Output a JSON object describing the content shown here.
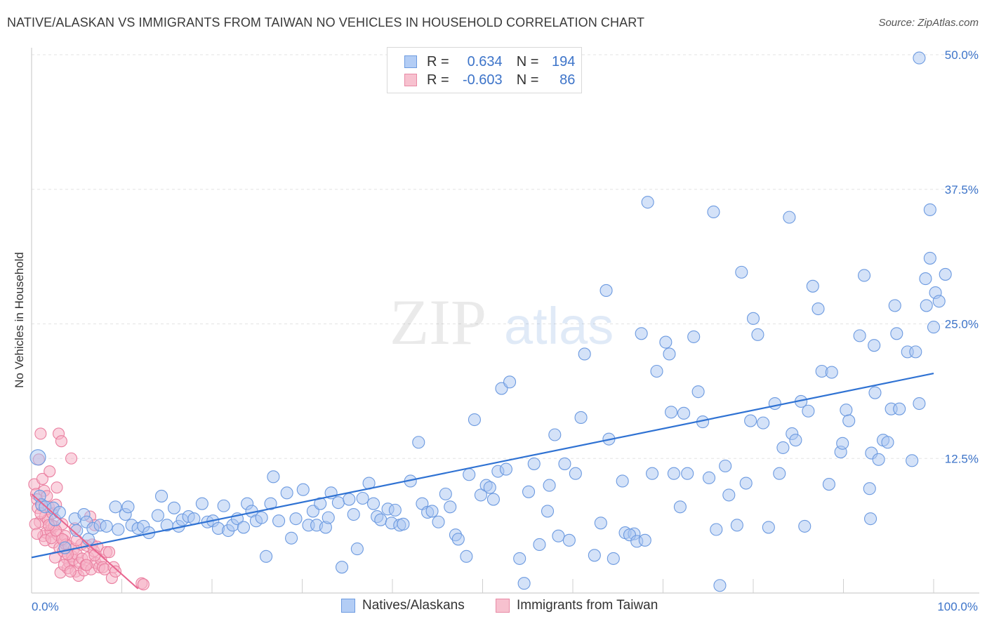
{
  "header": {
    "title": "NATIVE/ALASKAN VS IMMIGRANTS FROM TAIWAN NO VEHICLES IN HOUSEHOLD CORRELATION CHART",
    "source": "Source: ZipAtlas.com"
  },
  "stats_box": {
    "rows": [
      {
        "r_label": "R =",
        "r_value": "0.634",
        "n_label": "N =",
        "n_value": "194"
      },
      {
        "r_label": "R =",
        "r_value": "-0.603",
        "n_label": "N =",
        "n_value": "86"
      }
    ]
  },
  "watermark": {
    "zip": "ZIP",
    "atlas": "atlas"
  },
  "colors": {
    "blue_fill": "#a9c6f2",
    "blue_stroke": "#6c9ae0",
    "blue_line": "#2f72d3",
    "pink_fill": "#f6b3c6",
    "pink_stroke": "#ea7fa0",
    "pink_line": "#e8648e",
    "tick_text": "#3d74c9",
    "grid": "#e3e3e3"
  },
  "legend": {
    "items": [
      "Natives/Alaskans",
      "Immigrants from Taiwan"
    ]
  },
  "chart_data": {
    "type": "scatter",
    "title": "NATIVE/ALASKAN VS IMMIGRANTS FROM TAIWAN NO VEHICLES IN HOUSEHOLD CORRELATION CHART",
    "xlabel": "",
    "ylabel": "No Vehicles in Household",
    "xlim": [
      0,
      100
    ],
    "ylim": [
      0,
      50
    ],
    "x_tick_labels": [
      "0.0%",
      "100.0%"
    ],
    "y_ticks": [
      12.5,
      25.0,
      37.5,
      50.0
    ],
    "y_tick_labels": [
      "12.5%",
      "25.0%",
      "37.5%",
      "50.0%"
    ],
    "grid": true,
    "legend_position": "bottom",
    "series": [
      {
        "name": "Natives/Alaskans",
        "r": 0.634,
        "n": 194,
        "trend": {
          "x": [
            0,
            100
          ],
          "y": [
            3.3,
            20.4
          ]
        },
        "points": [
          [
            0.7,
            12.6
          ],
          [
            0.9,
            9.0
          ],
          [
            1.1,
            8.2
          ],
          [
            1.5,
            8.0
          ],
          [
            2.4,
            7.9
          ],
          [
            2.6,
            6.8
          ],
          [
            3.1,
            7.5
          ],
          [
            3.7,
            4.2
          ],
          [
            4.8,
            6.9
          ],
          [
            5.0,
            5.8
          ],
          [
            5.8,
            7.3
          ],
          [
            6.1,
            6.6
          ],
          [
            6.3,
            5.0
          ],
          [
            6.8,
            6.0
          ],
          [
            7.6,
            6.3
          ],
          [
            8.3,
            6.2
          ],
          [
            9.3,
            8.0
          ],
          [
            9.6,
            5.9
          ],
          [
            10.4,
            7.3
          ],
          [
            10.7,
            8.0
          ],
          [
            11.1,
            6.3
          ],
          [
            11.8,
            6.0
          ],
          [
            12.4,
            6.2
          ],
          [
            13.0,
            5.6
          ],
          [
            14.0,
            7.2
          ],
          [
            14.4,
            9.0
          ],
          [
            15.0,
            6.3
          ],
          [
            15.8,
            7.9
          ],
          [
            16.3,
            6.2
          ],
          [
            16.7,
            6.8
          ],
          [
            17.4,
            7.1
          ],
          [
            18.0,
            6.9
          ],
          [
            18.9,
            8.3
          ],
          [
            19.5,
            6.6
          ],
          [
            20.1,
            6.7
          ],
          [
            20.7,
            6.0
          ],
          [
            21.3,
            8.1
          ],
          [
            21.8,
            5.8
          ],
          [
            22.3,
            6.3
          ],
          [
            22.8,
            6.9
          ],
          [
            23.5,
            6.1
          ],
          [
            23.9,
            8.3
          ],
          [
            24.4,
            7.6
          ],
          [
            24.9,
            6.7
          ],
          [
            25.5,
            7.0
          ],
          [
            26.0,
            3.4
          ],
          [
            26.5,
            8.3
          ],
          [
            26.8,
            10.8
          ],
          [
            27.4,
            6.7
          ],
          [
            28.3,
            9.3
          ],
          [
            28.8,
            5.1
          ],
          [
            29.3,
            6.9
          ],
          [
            30.1,
            9.6
          ],
          [
            30.7,
            6.3
          ],
          [
            31.2,
            7.6
          ],
          [
            31.6,
            6.3
          ],
          [
            32.0,
            8.3
          ],
          [
            32.6,
            6.1
          ],
          [
            32.9,
            7.0
          ],
          [
            33.2,
            9.3
          ],
          [
            34.0,
            8.4
          ],
          [
            34.4,
            2.4
          ],
          [
            35.2,
            8.7
          ],
          [
            35.7,
            7.3
          ],
          [
            36.1,
            4.1
          ],
          [
            36.7,
            8.8
          ],
          [
            37.4,
            10.2
          ],
          [
            37.9,
            8.3
          ],
          [
            38.3,
            7.1
          ],
          [
            38.7,
            6.8
          ],
          [
            39.5,
            7.8
          ],
          [
            39.9,
            6.5
          ],
          [
            40.3,
            7.7
          ],
          [
            40.8,
            6.3
          ],
          [
            41.2,
            6.4
          ],
          [
            42.0,
            10.4
          ],
          [
            42.9,
            14.0
          ],
          [
            43.3,
            8.3
          ],
          [
            43.9,
            7.5
          ],
          [
            44.4,
            7.6
          ],
          [
            45.1,
            6.6
          ],
          [
            45.9,
            9.2
          ],
          [
            46.4,
            8.0
          ],
          [
            47.0,
            5.4
          ],
          [
            47.3,
            5.0
          ],
          [
            48.2,
            3.4
          ],
          [
            48.5,
            11.0
          ],
          [
            49.1,
            16.1
          ],
          [
            49.8,
            9.1
          ],
          [
            50.4,
            10.0
          ],
          [
            50.8,
            9.8
          ],
          [
            51.2,
            8.7
          ],
          [
            51.7,
            11.3
          ],
          [
            52.1,
            19.0
          ],
          [
            52.6,
            11.5
          ],
          [
            53.0,
            19.6
          ],
          [
            54.1,
            3.2
          ],
          [
            54.6,
            0.9
          ],
          [
            55.1,
            9.4
          ],
          [
            55.7,
            12.0
          ],
          [
            56.3,
            4.5
          ],
          [
            57.2,
            7.6
          ],
          [
            57.4,
            10.0
          ],
          [
            58.0,
            14.7
          ],
          [
            58.4,
            5.3
          ],
          [
            59.1,
            12.0
          ],
          [
            59.6,
            4.9
          ],
          [
            60.3,
            11.1
          ],
          [
            60.9,
            16.3
          ],
          [
            61.3,
            22.2
          ],
          [
            62.4,
            3.5
          ],
          [
            63.1,
            6.5
          ],
          [
            63.7,
            28.1
          ],
          [
            64.0,
            14.3
          ],
          [
            64.5,
            3.2
          ],
          [
            65.5,
            10.4
          ],
          [
            65.8,
            5.6
          ],
          [
            66.8,
            5.5
          ],
          [
            66.3,
            5.4
          ],
          [
            67.1,
            4.8
          ],
          [
            67.6,
            24.1
          ],
          [
            68.0,
            4.9
          ],
          [
            68.8,
            11.1
          ],
          [
            68.3,
            36.3
          ],
          [
            69.3,
            20.6
          ],
          [
            70.3,
            23.3
          ],
          [
            70.9,
            16.8
          ],
          [
            70.7,
            22.2
          ],
          [
            71.2,
            11.1
          ],
          [
            71.9,
            8.0
          ],
          [
            72.3,
            16.7
          ],
          [
            72.7,
            11.1
          ],
          [
            73.4,
            23.8
          ],
          [
            73.9,
            18.7
          ],
          [
            74.4,
            15.9
          ],
          [
            75.1,
            10.7
          ],
          [
            75.6,
            35.4
          ],
          [
            75.9,
            5.9
          ],
          [
            76.3,
            0.7
          ],
          [
            76.9,
            11.8
          ],
          [
            77.3,
            9.1
          ],
          [
            78.2,
            6.3
          ],
          [
            78.7,
            29.8
          ],
          [
            79.2,
            10.2
          ],
          [
            79.7,
            16.0
          ],
          [
            80.0,
            25.5
          ],
          [
            80.5,
            24.0
          ],
          [
            81.1,
            15.8
          ],
          [
            81.7,
            6.1
          ],
          [
            82.4,
            17.6
          ],
          [
            82.9,
            11.1
          ],
          [
            83.3,
            13.5
          ],
          [
            84.0,
            34.9
          ],
          [
            84.3,
            14.8
          ],
          [
            84.7,
            14.2
          ],
          [
            85.3,
            17.8
          ],
          [
            85.7,
            6.2
          ],
          [
            86.1,
            16.9
          ],
          [
            86.6,
            28.5
          ],
          [
            87.2,
            26.4
          ],
          [
            87.6,
            20.6
          ],
          [
            88.4,
            10.1
          ],
          [
            88.7,
            20.5
          ],
          [
            89.7,
            13.1
          ],
          [
            89.9,
            13.9
          ],
          [
            90.3,
            17.0
          ],
          [
            90.6,
            16.0
          ],
          [
            91.8,
            23.9
          ],
          [
            92.3,
            29.5
          ],
          [
            92.9,
            9.7
          ],
          [
            93.0,
            6.9
          ],
          [
            93.1,
            13.0
          ],
          [
            93.4,
            23.0
          ],
          [
            93.5,
            18.6
          ],
          [
            93.9,
            12.4
          ],
          [
            94.4,
            14.2
          ],
          [
            94.9,
            14.0
          ],
          [
            95.3,
            17.1
          ],
          [
            95.9,
            24.1
          ],
          [
            96.2,
            17.1
          ],
          [
            97.1,
            22.4
          ],
          [
            97.6,
            12.3
          ],
          [
            98.0,
            22.4
          ],
          [
            98.4,
            17.6
          ],
          [
            99.1,
            29.2
          ],
          [
            99.2,
            26.7
          ],
          [
            99.6,
            31.1
          ],
          [
            100.2,
            27.9
          ],
          [
            100.6,
            27.1
          ],
          [
            101.3,
            29.6
          ],
          [
            98.4,
            49.7
          ],
          [
            99.6,
            35.6
          ],
          [
            100.0,
            24.7
          ],
          [
            95.7,
            26.7
          ]
        ]
      },
      {
        "name": "Immigrants from Taiwan",
        "r": -0.603,
        "n": 86,
        "trend": {
          "x": [
            0,
            11.8
          ],
          "y": [
            9.2,
            0.4
          ]
        },
        "points": [
          [
            0.3,
            10.1
          ],
          [
            0.5,
            9.2
          ],
          [
            0.6,
            8.7
          ],
          [
            0.7,
            7.9
          ],
          [
            0.8,
            12.4
          ],
          [
            0.9,
            6.6
          ],
          [
            1.0,
            14.8
          ],
          [
            1.1,
            8.1
          ],
          [
            1.2,
            10.6
          ],
          [
            1.3,
            5.3
          ],
          [
            1.4,
            9.5
          ],
          [
            1.5,
            7.1
          ],
          [
            1.6,
            5.6
          ],
          [
            1.7,
            9.0
          ],
          [
            1.8,
            6.8
          ],
          [
            1.9,
            8.0
          ],
          [
            2.0,
            11.3
          ],
          [
            2.1,
            5.8
          ],
          [
            2.2,
            6.3
          ],
          [
            2.3,
            7.4
          ],
          [
            2.4,
            4.7
          ],
          [
            2.5,
            6.2
          ],
          [
            2.6,
            3.3
          ],
          [
            2.7,
            8.2
          ],
          [
            2.8,
            9.8
          ],
          [
            2.9,
            5.4
          ],
          [
            3.0,
            14.8
          ],
          [
            3.1,
            4.2
          ],
          [
            3.2,
            1.9
          ],
          [
            3.3,
            14.1
          ],
          [
            3.4,
            6.4
          ],
          [
            3.5,
            3.9
          ],
          [
            3.6,
            4.9
          ],
          [
            3.7,
            5.3
          ],
          [
            3.8,
            4.5
          ],
          [
            3.9,
            3.2
          ],
          [
            4.0,
            2.3
          ],
          [
            4.1,
            4.4
          ],
          [
            4.2,
            2.8
          ],
          [
            4.4,
            12.5
          ],
          [
            4.5,
            3.4
          ],
          [
            4.6,
            3.1
          ],
          [
            4.7,
            4.1
          ],
          [
            4.8,
            6.0
          ],
          [
            4.9,
            2.0
          ],
          [
            5.0,
            3.6
          ],
          [
            5.2,
            1.6
          ],
          [
            5.3,
            2.8
          ],
          [
            5.5,
            4.5
          ],
          [
            5.6,
            3.2
          ],
          [
            5.8,
            2.1
          ],
          [
            6.0,
            2.6
          ],
          [
            6.1,
            4.4
          ],
          [
            6.3,
            3.3
          ],
          [
            6.5,
            7.1
          ],
          [
            6.6,
            2.2
          ],
          [
            6.7,
            4.5
          ],
          [
            6.9,
            3.9
          ],
          [
            7.0,
            6.3
          ],
          [
            7.1,
            2.8
          ],
          [
            7.3,
            4.3
          ],
          [
            7.5,
            2.4
          ],
          [
            7.7,
            3.1
          ],
          [
            7.9,
            2.4
          ],
          [
            8.1,
            2.2
          ],
          [
            8.3,
            3.8
          ],
          [
            8.6,
            3.8
          ],
          [
            8.9,
            1.4
          ],
          [
            9.1,
            2.4
          ],
          [
            9.3,
            2.0
          ],
          [
            0.4,
            6.4
          ],
          [
            0.6,
            5.5
          ],
          [
            1.0,
            7.4
          ],
          [
            1.5,
            4.9
          ],
          [
            2.2,
            5.1
          ],
          [
            3.4,
            5.0
          ],
          [
            4.0,
            3.6
          ],
          [
            5.0,
            4.9
          ],
          [
            6.1,
            2.6
          ],
          [
            7.0,
            3.5
          ],
          [
            12.2,
            0.9
          ],
          [
            12.4,
            0.8
          ],
          [
            2.7,
            5.8
          ],
          [
            1.9,
            6.3
          ],
          [
            3.6,
            2.6
          ],
          [
            4.3,
            2.0
          ]
        ]
      }
    ]
  }
}
